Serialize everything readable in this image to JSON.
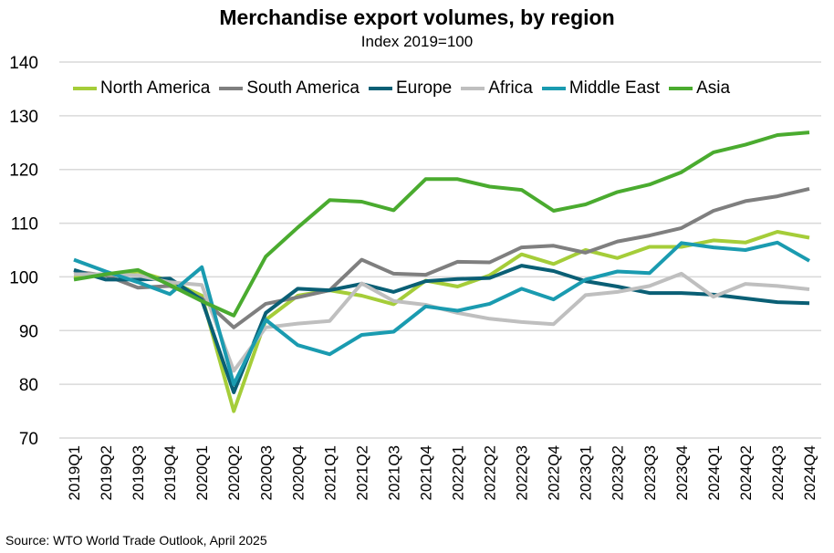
{
  "chart_data": {
    "type": "line",
    "title": "Merchandise export volumes, by region",
    "subtitle": "Index 2019=100",
    "source": "Source: WTO World Trade Outlook, April 2025",
    "xlabel": "",
    "ylabel": "",
    "ylim": [
      70,
      140
    ],
    "yticks": [
      70,
      80,
      90,
      100,
      110,
      120,
      130,
      140
    ],
    "grid": true,
    "legend_position": "top",
    "x": [
      "2019Q1",
      "2019Q2",
      "2019Q3",
      "2019Q4",
      "2020Q1",
      "2020Q2",
      "2020Q3",
      "2020Q4",
      "2021Q1",
      "2021Q2",
      "2021Q3",
      "2021Q4",
      "2022Q1",
      "2022Q2",
      "2022Q3",
      "2022Q4",
      "2023Q1",
      "2023Q2",
      "2023Q3",
      "2023Q4",
      "2024Q1",
      "2024Q2",
      "2024Q3",
      "2024Q4"
    ],
    "series": [
      {
        "name": "North America",
        "color": "#a5cd39",
        "values": [
          100,
          100.3,
          101,
          99.2,
          96.5,
          75,
          92,
          96.5,
          97.5,
          96.5,
          94.9,
          99.3,
          98.2,
          100.3,
          104.2,
          102.4,
          105,
          103.5,
          105.6,
          105.6,
          106.8,
          106.4,
          108.4,
          107.3
        ]
      },
      {
        "name": "South America",
        "color": "#7f7f7f",
        "values": [
          101,
          100.3,
          98,
          98.3,
          96,
          90.6,
          95,
          96.2,
          97.5,
          103.2,
          100.6,
          100.4,
          102.8,
          102.7,
          105.5,
          105.8,
          104.5,
          106.6,
          107.7,
          109.1,
          112.3,
          114.1,
          115,
          116.4
        ]
      },
      {
        "name": "Europe",
        "color": "#0a5f75",
        "values": [
          101.3,
          99.5,
          99.5,
          99.7,
          95.7,
          78.5,
          93.3,
          97.8,
          97.5,
          98.7,
          97.2,
          99.2,
          99.6,
          99.8,
          102.1,
          101.1,
          99.2,
          98.2,
          97,
          97,
          96.7,
          96,
          95.3,
          95.1
        ]
      },
      {
        "name": "Africa",
        "color": "#bfbfbf",
        "values": [
          100.5,
          100.5,
          100.3,
          99,
          98.5,
          82.5,
          90.6,
          91.3,
          91.8,
          98.8,
          95.5,
          94.8,
          93.3,
          92.2,
          91.6,
          91.2,
          96.6,
          97.2,
          98.3,
          100.6,
          96.3,
          98.7,
          98.3,
          97.7
        ]
      },
      {
        "name": "Middle East",
        "color": "#1a9bb0",
        "values": [
          103.2,
          101,
          99,
          96.8,
          101.8,
          80,
          92,
          87.3,
          85.6,
          89.2,
          89.8,
          94.5,
          93.7,
          95,
          97.8,
          95.8,
          99.5,
          101,
          100.7,
          106.3,
          105.5,
          105,
          106.4,
          103
        ]
      },
      {
        "name": "Asia",
        "color": "#4aab2f",
        "values": [
          99.5,
          100.5,
          101.3,
          98.5,
          95.5,
          92.8,
          103.8,
          109.2,
          114.3,
          114,
          112.4,
          118.2,
          118.2,
          116.8,
          116.2,
          112.3,
          113.5,
          115.8,
          117.2,
          119.5,
          123.2,
          124.6,
          126.4,
          126.9
        ]
      }
    ]
  }
}
